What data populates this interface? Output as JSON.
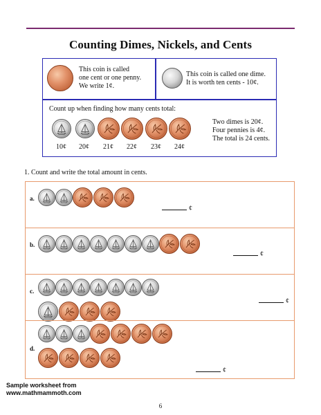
{
  "title": "Counting Dimes, Nickels, and Cents",
  "info": {
    "penny_text": [
      "This coin is called",
      "one cent or one penny.",
      "We write 1¢."
    ],
    "dime_text": [
      "This coin is called one dime.",
      "It is worth ten cents - 10¢."
    ],
    "count_up_label": "Count up when finding how many cents total:",
    "count_labels": [
      "10¢",
      "20¢",
      "21¢",
      "22¢",
      "23¢",
      "24¢"
    ],
    "summary": [
      "Two dimes is 20¢.",
      "Four pennies is 4¢.",
      "The total is 24 cents."
    ]
  },
  "exercise": {
    "instruction": "1. Count and write the total amount in cents.",
    "rows": [
      {
        "letter": "a.",
        "dimes": 2,
        "pennies": 3
      },
      {
        "letter": "b.",
        "dimes": 7,
        "pennies": 2
      },
      {
        "letter": "c.",
        "dimes": 8,
        "pennies": 3
      },
      {
        "letter": "d.",
        "dimes": 3,
        "pennies": 8
      }
    ],
    "cent_symbol": "¢"
  },
  "footer": {
    "line1": "Sample worksheet from",
    "line2": "www.mathmammoth.com"
  },
  "page_number": "6"
}
